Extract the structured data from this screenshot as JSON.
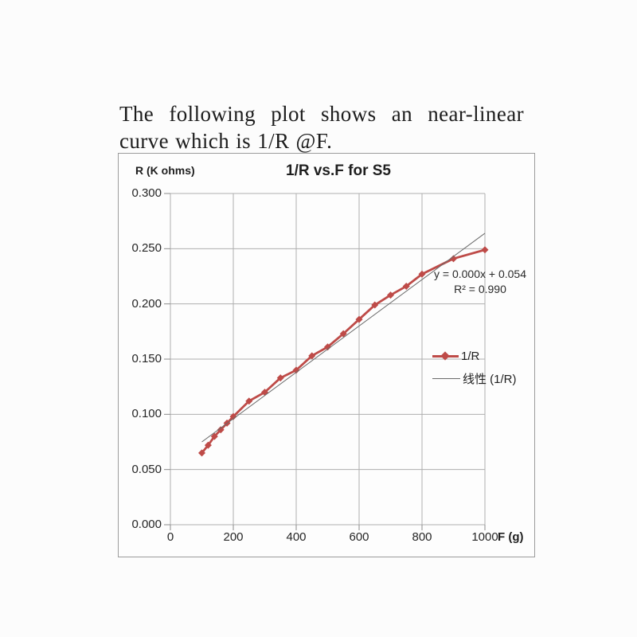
{
  "document": {
    "paragraph": "The following plot shows an near-linear curve which is 1/R @F."
  },
  "chart": {
    "title": "1/R vs.F for S5",
    "y_axis_title": "R (K ohms)",
    "x_axis_title": "F (g)",
    "annotation": {
      "line1": "y = 0.000x + 0.054",
      "line2": "R² = 0.990"
    },
    "legend": {
      "series_label": "1/R",
      "trendline_label": "线性 (1/R)"
    },
    "colors": {
      "series": "#BE4B48",
      "trendline": "#6b6b6b",
      "gridline": "#aeaeae",
      "tick": "#8c8c8c",
      "frame_border": "#9b9b9b",
      "text": "#1f1f1f"
    }
  },
  "chart_data": {
    "type": "line",
    "title": "1/R vs.F for S5",
    "xlabel": "F (g)",
    "ylabel": "R (K ohms)",
    "xlim": [
      0,
      1000
    ],
    "ylim": [
      0.0,
      0.3
    ],
    "x_ticks": [
      0,
      200,
      400,
      600,
      800,
      1000
    ],
    "y_ticks": [
      0.0,
      0.05,
      0.1,
      0.15,
      0.2,
      0.25,
      0.3
    ],
    "y_tick_decimals": 3,
    "grid": true,
    "legend_position": "middle-right",
    "series": [
      {
        "name": "1/R",
        "type": "line-markers",
        "marker": "diamond",
        "color": "#BE4B48",
        "x": [
          100,
          120,
          140,
          160,
          180,
          200,
          250,
          300,
          350,
          400,
          450,
          500,
          550,
          600,
          650,
          700,
          750,
          800,
          900,
          1000
        ],
        "y": [
          0.065,
          0.072,
          0.08,
          0.086,
          0.092,
          0.098,
          0.112,
          0.12,
          0.133,
          0.14,
          0.153,
          0.161,
          0.173,
          0.186,
          0.199,
          0.208,
          0.216,
          0.227,
          0.241,
          0.249
        ]
      },
      {
        "name": "线性 (1/R)",
        "type": "trendline",
        "color": "#6b6b6b",
        "x": [
          100,
          1000
        ],
        "y": [
          0.075,
          0.264
        ]
      }
    ],
    "annotations": [
      "y = 0.000x + 0.054",
      "R² = 0.990"
    ]
  }
}
